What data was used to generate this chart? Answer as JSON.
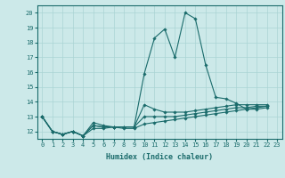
{
  "title": "",
  "xlabel": "Humidex (Indice chaleur)",
  "background_color": "#cce9e9",
  "grid_color": "#aad4d4",
  "line_color": "#1a6b6b",
  "xmin": -0.5,
  "xmax": 23.5,
  "ymin": 11.5,
  "ymax": 20.5,
  "series": [
    [
      13.0,
      12.0,
      11.8,
      12.0,
      11.7,
      12.6,
      12.4,
      12.3,
      12.3,
      12.3,
      15.9,
      18.3,
      18.9,
      17.0,
      20.0,
      19.6,
      16.5,
      14.3,
      14.2,
      13.9,
      13.5,
      13.6,
      13.7
    ],
    [
      13.0,
      12.0,
      11.8,
      12.0,
      11.7,
      12.4,
      12.3,
      12.3,
      12.3,
      12.3,
      13.8,
      13.5,
      13.3,
      13.3,
      13.3,
      13.4,
      13.5,
      13.6,
      13.7,
      13.8,
      13.8,
      13.8,
      13.8
    ],
    [
      13.0,
      12.0,
      11.8,
      12.0,
      11.7,
      12.4,
      12.3,
      12.3,
      12.3,
      12.3,
      13.0,
      13.0,
      13.0,
      13.0,
      13.1,
      13.2,
      13.3,
      13.4,
      13.5,
      13.6,
      13.6,
      13.7,
      13.7
    ],
    [
      13.0,
      12.0,
      11.8,
      12.0,
      11.7,
      12.2,
      12.2,
      12.3,
      12.2,
      12.2,
      12.5,
      12.6,
      12.7,
      12.8,
      12.9,
      13.0,
      13.1,
      13.2,
      13.3,
      13.4,
      13.5,
      13.5,
      13.6
    ]
  ],
  "xticks": [
    0,
    1,
    2,
    3,
    4,
    5,
    6,
    7,
    8,
    9,
    10,
    11,
    12,
    13,
    14,
    15,
    16,
    17,
    18,
    19,
    20,
    21,
    22,
    23
  ],
  "yticks": [
    12,
    13,
    14,
    15,
    16,
    17,
    18,
    19,
    20
  ],
  "tick_fontsize": 5.0,
  "xlabel_fontsize": 6.0,
  "linewidth": 0.8,
  "markersize": 1.8
}
